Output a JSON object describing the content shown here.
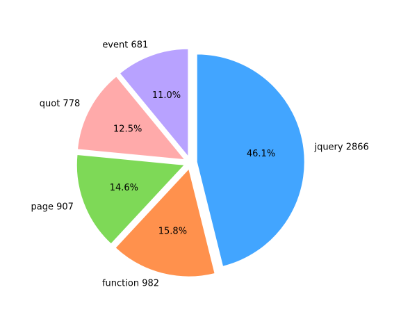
{
  "chart_data": {
    "type": "pie",
    "start_angle_deg": 90,
    "direction": "clockwise",
    "exploded": true,
    "slices": [
      {
        "name": "jquery",
        "value": 2866,
        "label": "jquery 2866",
        "pct_label": "46.1%",
        "color": "#42a5ff"
      },
      {
        "name": "function",
        "value": 982,
        "label": "function 982",
        "pct_label": "15.8%",
        "color": "#ff914d"
      },
      {
        "name": "page",
        "value": 907,
        "label": "page 907",
        "pct_label": "14.6%",
        "color": "#7ed957"
      },
      {
        "name": "quot",
        "value": 778,
        "label": "quot 778",
        "pct_label": "12.5%",
        "color": "#ffaaaa"
      },
      {
        "name": "event",
        "value": 681,
        "label": "event 681",
        "pct_label": "11.0%",
        "color": "#b8a2ff"
      }
    ]
  }
}
